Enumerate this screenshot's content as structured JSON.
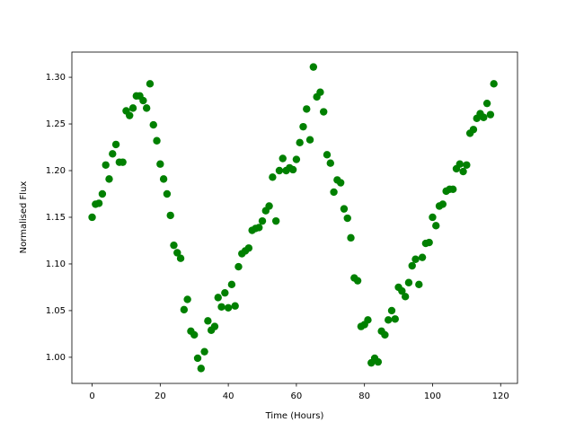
{
  "chart_data": {
    "type": "scatter",
    "xlabel": "Time (Hours)",
    "ylabel": "Normalised Flux",
    "x": [
      0,
      1,
      2,
      3,
      4,
      5,
      6,
      7,
      8,
      9,
      10,
      11,
      12,
      13,
      14,
      15,
      16,
      17,
      18,
      19,
      20,
      21,
      22,
      23,
      24,
      25,
      26,
      27,
      28,
      29,
      30,
      31,
      32,
      33,
      34,
      35,
      36,
      37,
      38,
      39,
      40,
      41,
      42,
      43,
      44,
      45,
      46,
      47,
      48,
      49,
      50,
      51,
      52,
      53,
      54,
      55,
      56,
      57,
      58,
      59,
      60,
      61,
      62,
      63,
      64,
      65,
      66,
      67,
      68,
      69,
      70,
      71,
      72,
      73,
      74,
      75,
      76,
      77,
      78,
      79,
      80,
      81,
      82,
      83,
      84,
      85,
      86,
      87,
      88,
      89,
      90,
      91,
      92,
      93,
      94,
      95,
      96,
      97,
      98,
      99,
      100,
      101,
      102,
      103,
      104,
      105,
      106,
      107,
      108,
      109,
      110,
      111,
      112,
      113,
      114,
      115,
      116,
      117,
      118
    ],
    "values": [
      1.15,
      1.164,
      1.165,
      1.175,
      1.206,
      1.191,
      1.218,
      1.228,
      1.209,
      1.209,
      1.264,
      1.259,
      1.267,
      1.28,
      1.28,
      1.275,
      1.267,
      1.293,
      1.249,
      1.232,
      1.207,
      1.191,
      1.175,
      1.152,
      1.12,
      1.112,
      1.106,
      1.051,
      1.062,
      1.028,
      1.024,
      0.999,
      0.988,
      1.006,
      1.039,
      1.029,
      1.033,
      1.064,
      1.054,
      1.069,
      1.053,
      1.078,
      1.055,
      1.097,
      1.111,
      1.114,
      1.117,
      1.136,
      1.138,
      1.139,
      1.146,
      1.157,
      1.162,
      1.193,
      1.146,
      1.2,
      1.213,
      1.2,
      1.203,
      1.201,
      1.212,
      1.23,
      1.247,
      1.266,
      1.233,
      1.311,
      1.279,
      1.284,
      1.263,
      1.217,
      1.208,
      1.177,
      1.19,
      1.187,
      1.159,
      1.149,
      1.128,
      1.085,
      1.082,
      1.033,
      1.035,
      1.04,
      0.994,
      0.999,
      0.995,
      1.028,
      1.024,
      1.04,
      1.05,
      1.041,
      1.075,
      1.071,
      1.065,
      1.08,
      1.098,
      1.105,
      1.078,
      1.107,
      1.122,
      1.123,
      1.15,
      1.141,
      1.162,
      1.164,
      1.178,
      1.18,
      1.18,
      1.202,
      1.207,
      1.199,
      1.206,
      1.24,
      1.244,
      1.256,
      1.261,
      1.257,
      1.272,
      1.26,
      1.293
    ],
    "color": "#008000",
    "xlim": [
      -5.95,
      124.95
    ],
    "ylim": [
      0.972,
      1.327
    ],
    "xticks": [
      0,
      20,
      40,
      60,
      80,
      100,
      120
    ],
    "yticks": [
      {
        "value": 1,
        "label": "1.00"
      },
      1.05,
      {
        "value": 1.1,
        "label": "1.10"
      },
      1.15,
      {
        "value": 1.2,
        "label": "1.20"
      },
      1.25,
      {
        "value": 1.3,
        "label": "1.30"
      }
    ],
    "grid": false
  }
}
